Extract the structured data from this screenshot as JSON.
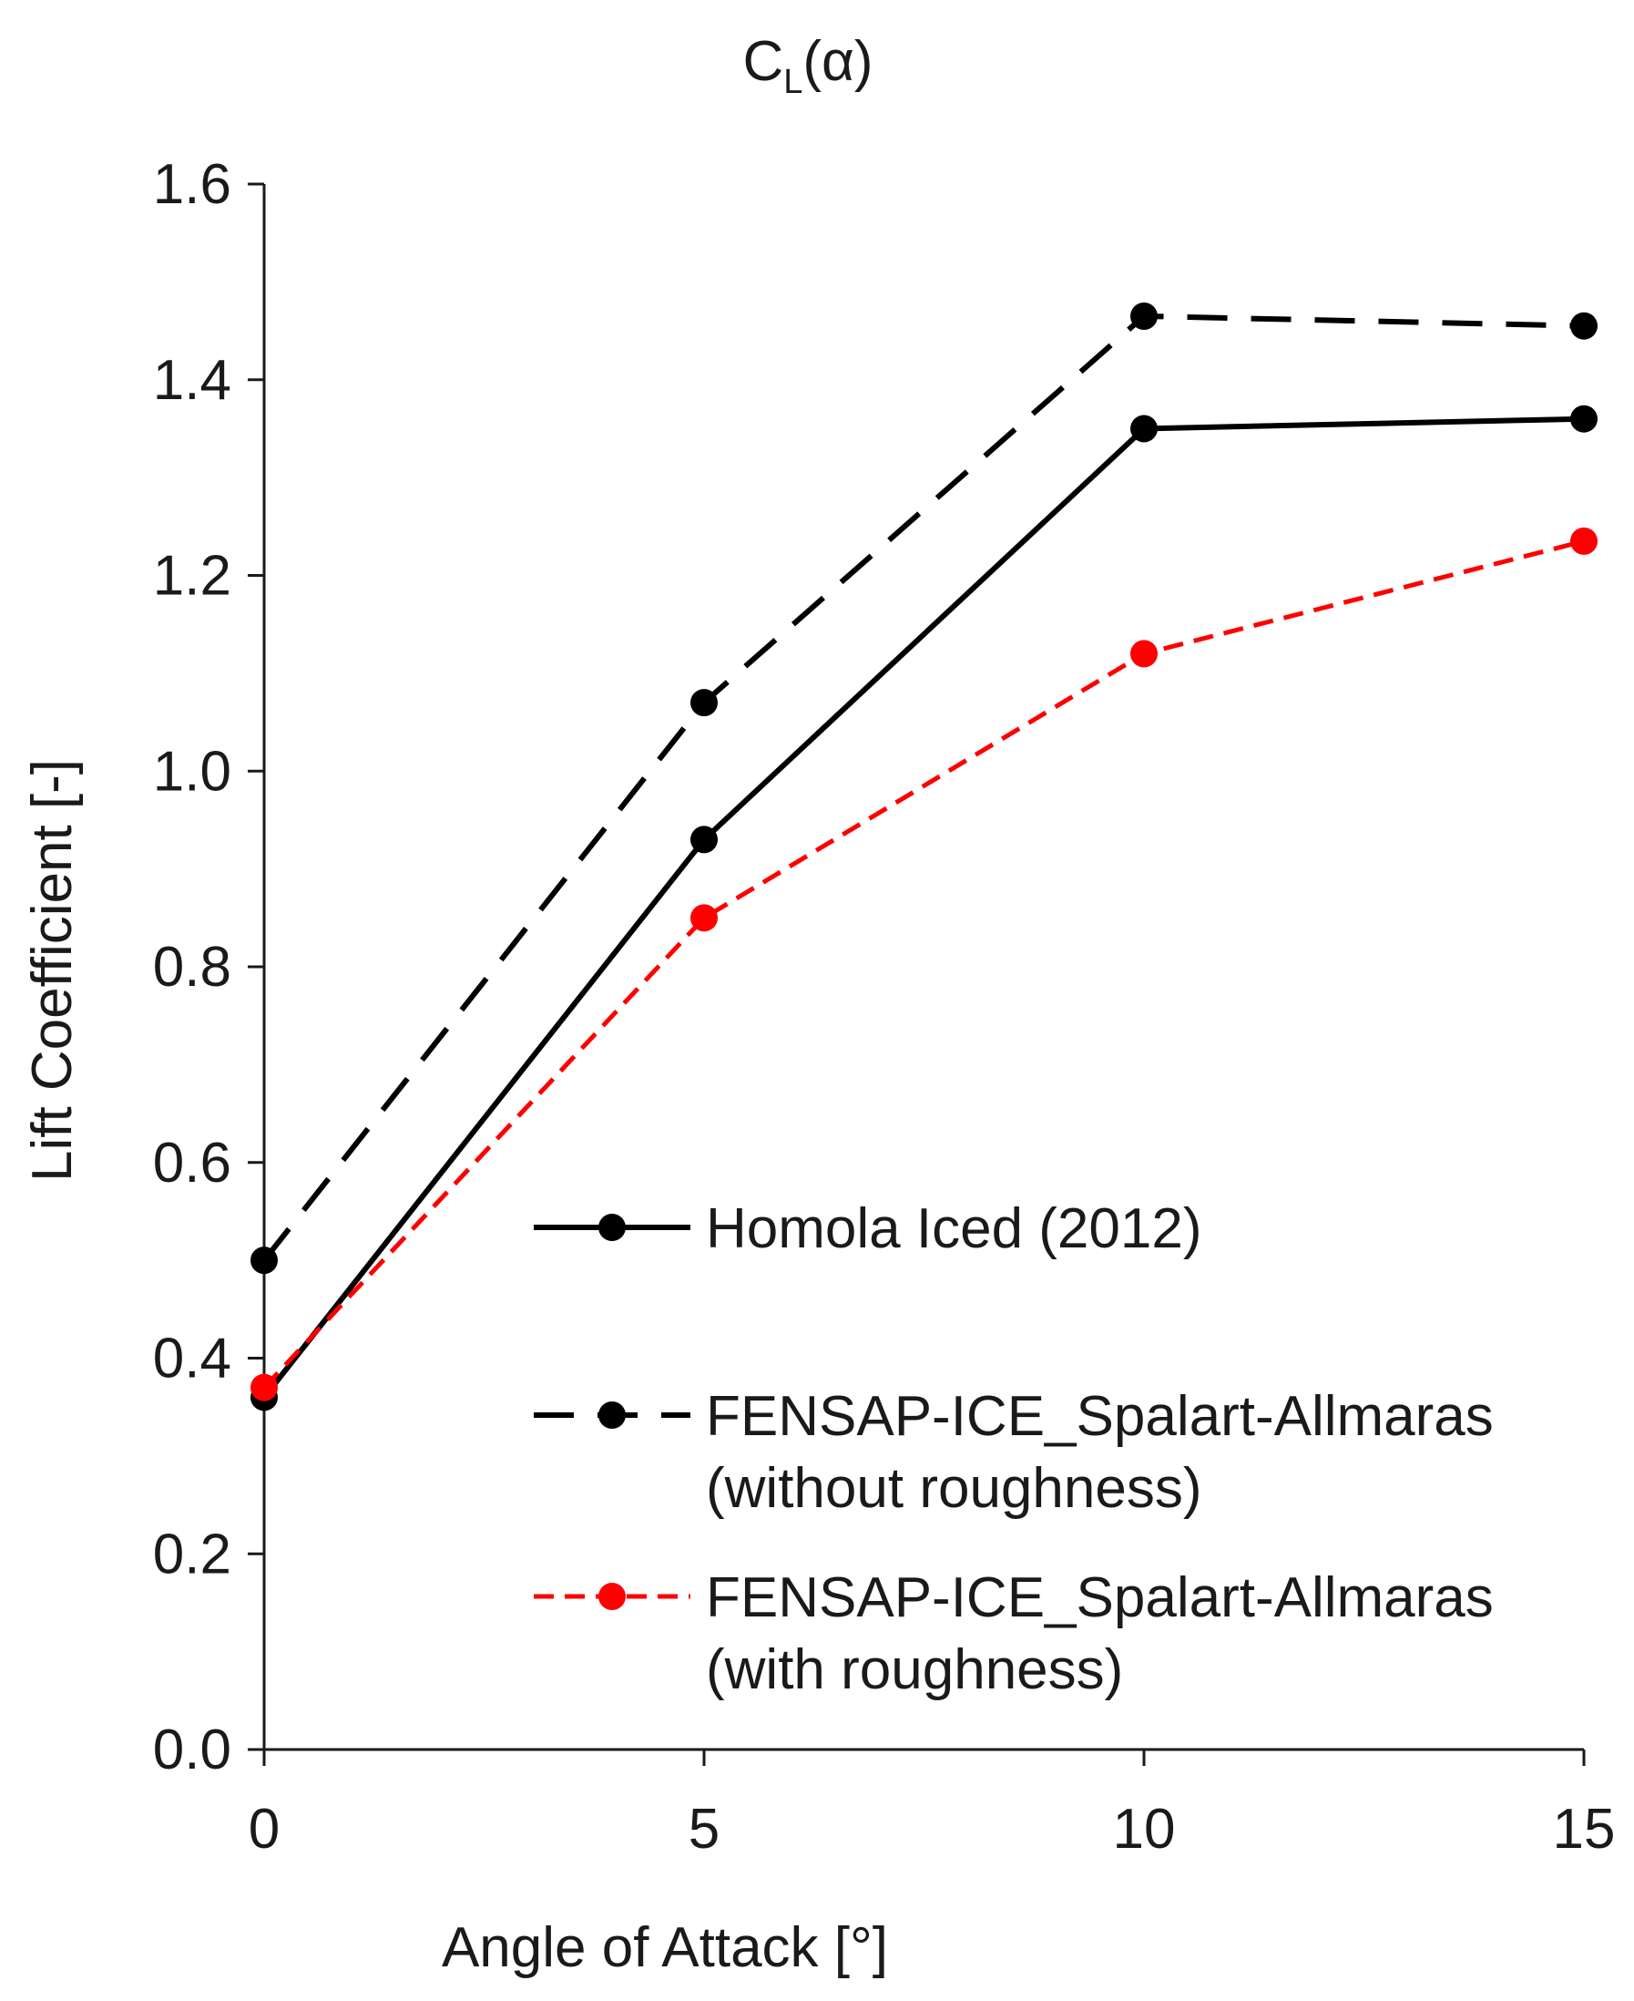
{
  "chart_data": {
    "type": "line",
    "title": "C_L(α)",
    "title_main": "C",
    "title_sub": "L",
    "title_rest": "(α)",
    "xlabel": "Angle of Attack [°]",
    "ylabel": "Lift Coefficient [-]",
    "x": [
      0,
      5,
      10,
      15
    ],
    "x_ticks": [
      "0",
      "5",
      "10",
      "15"
    ],
    "xlim": [
      0,
      15
    ],
    "ylim": [
      0,
      1.6
    ],
    "y_ticks": [
      "0.0",
      "0.2",
      "0.4",
      "0.6",
      "0.8",
      "1.0",
      "1.2",
      "1.4",
      "1.6"
    ],
    "grid": false,
    "legend_position": "center-right",
    "series": [
      {
        "name": "Homola Iced (2012)",
        "name_lines": [
          "Homola Iced (2012)"
        ],
        "values": [
          0.36,
          0.93,
          1.35,
          1.36
        ],
        "color": "#000000",
        "line_style": "solid",
        "marker": "circle"
      },
      {
        "name": "FENSAP-ICE_Spalart-Allmaras (without roughness)",
        "name_lines": [
          "FENSAP-ICE_Spalart-Allmaras",
          "(without roughness)"
        ],
        "values": [
          0.5,
          1.07,
          1.465,
          1.455
        ],
        "color": "#000000",
        "line_style": "dashed",
        "marker": "circle"
      },
      {
        "name": "FENSAP-ICE_Spalart-Allmaras (with roughness)",
        "name_lines": [
          "FENSAP-ICE_Spalart-Allmaras",
          "(with roughness)"
        ],
        "values": [
          0.37,
          0.85,
          1.12,
          1.235
        ],
        "color": "#ff0000",
        "line_style": "dashed",
        "marker": "circle"
      }
    ]
  }
}
